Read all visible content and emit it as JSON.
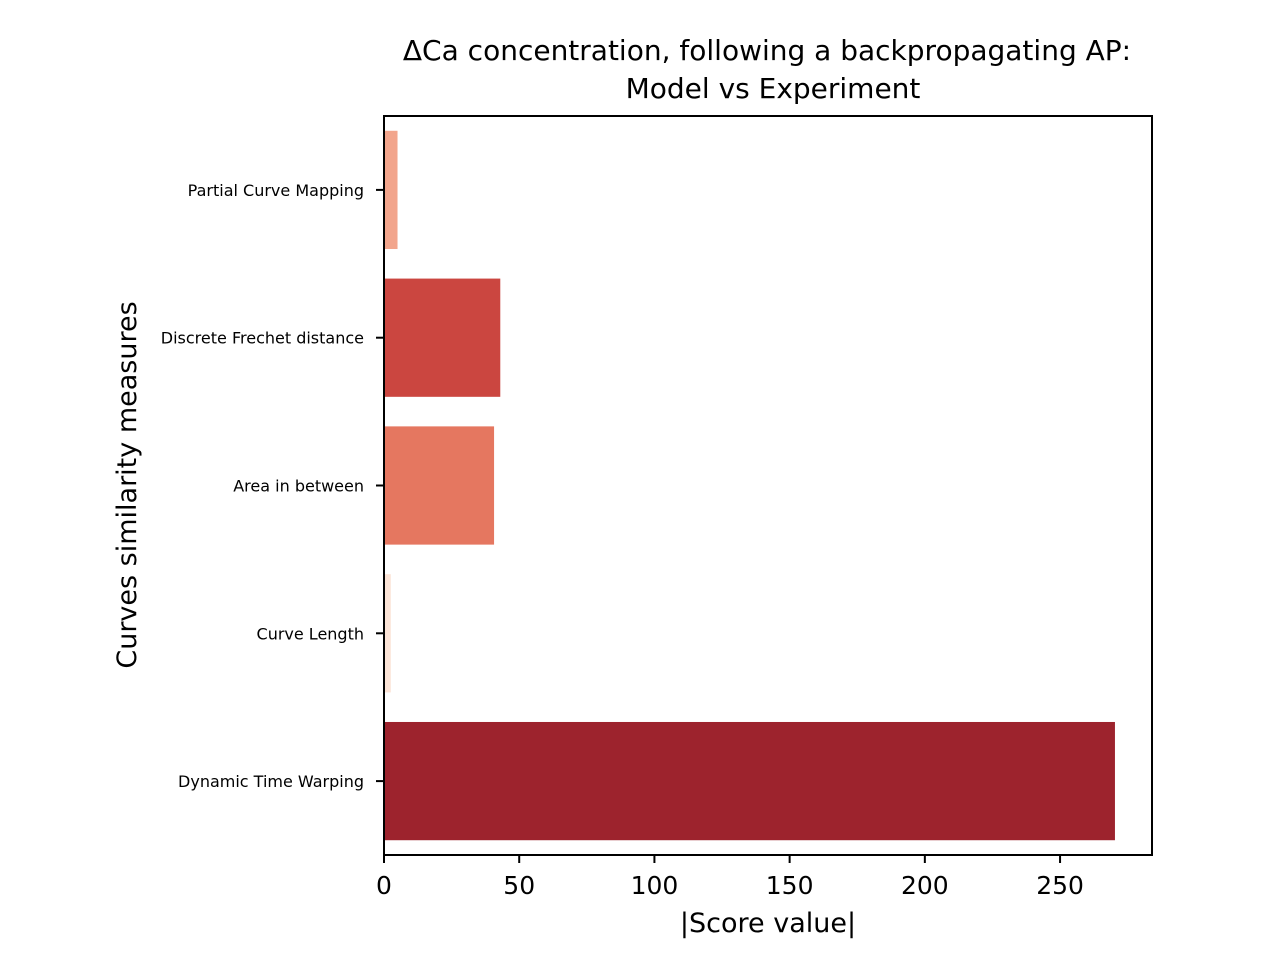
{
  "chart_data": {
    "type": "bar",
    "orientation": "horizontal",
    "title_lines": [
      "ΔCa concentration, following a backpropagating AP:",
      "Model vs Experiment"
    ],
    "xlabel": "|Score value|",
    "ylabel": "Curves similarity measures",
    "categories": [
      "Partial Curve Mapping",
      "Discrete Frechet distance",
      "Area in between",
      "Curve Length",
      "Dynamic Time Warping"
    ],
    "values": [
      5.0,
      43.0,
      40.7,
      2.5,
      270.3
    ],
    "colors": [
      "#f2a58c",
      "#cb4640",
      "#e57760",
      "#fbe3d6",
      "#9d232d"
    ],
    "xlim": [
      0,
      284
    ],
    "xticks": [
      0,
      50,
      100,
      150,
      200,
      250
    ],
    "grid": false,
    "legend": "none"
  }
}
